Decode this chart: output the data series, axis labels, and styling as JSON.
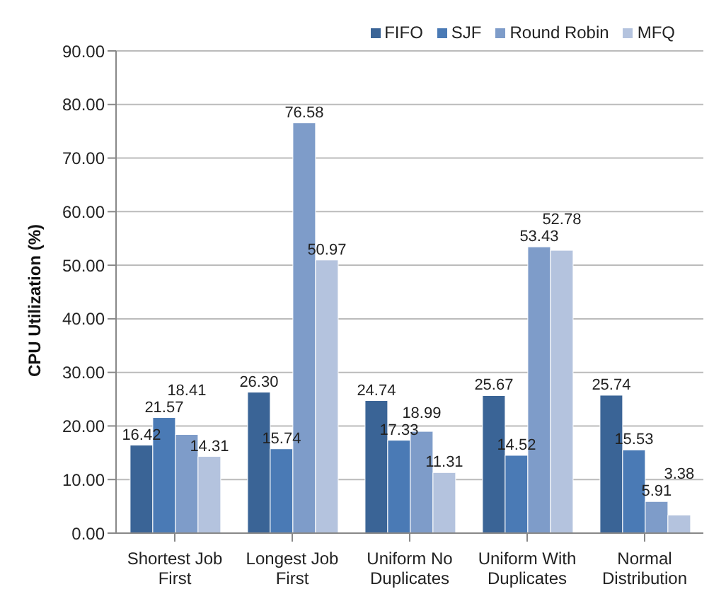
{
  "chart_data": {
    "type": "bar",
    "ylabel": "CPU Utilization (%)",
    "categories": [
      "Shortest Job First",
      "Longest Job First",
      "Uniform No Duplicates",
      "Uniform With Duplicates",
      "Normal Distribution"
    ],
    "series": [
      {
        "name": "FIFO",
        "color": "#3a6496",
        "values": [
          16.42,
          26.3,
          24.74,
          25.67,
          25.74
        ],
        "value_labels": [
          "16.42",
          "26.30",
          "24.74",
          "25.67",
          "25.74"
        ]
      },
      {
        "name": "SJF",
        "color": "#4a7ab5",
        "values": [
          21.57,
          15.74,
          17.33,
          14.52,
          15.53
        ],
        "value_labels": [
          "21.57",
          "15.74",
          "17.33",
          "14.52",
          "15.53"
        ]
      },
      {
        "name": "Round Robin",
        "color": "#7e9cc9",
        "values": [
          18.41,
          76.58,
          18.99,
          53.43,
          5.91
        ],
        "value_labels": [
          "18.41",
          "76.58",
          "18.99",
          "53.43",
          "5.91"
        ]
      },
      {
        "name": "MFQ",
        "color": "#b4c3de",
        "values": [
          14.31,
          50.97,
          11.31,
          52.78,
          3.38
        ],
        "value_labels": [
          "14.31",
          "50.97",
          "11.31",
          "52.78",
          "3.38"
        ]
      }
    ],
    "ylim": [
      0,
      90
    ],
    "yticks": [
      {
        "value": 0,
        "label": "0.00"
      },
      {
        "value": 10,
        "label": "10.00"
      },
      {
        "value": 20,
        "label": "20.00"
      },
      {
        "value": 30,
        "label": "30.00"
      },
      {
        "value": 40,
        "label": "40.00"
      },
      {
        "value": 50,
        "label": "50.00"
      },
      {
        "value": 60,
        "label": "60.00"
      },
      {
        "value": 70,
        "label": "70.00"
      },
      {
        "value": 80,
        "label": "80.00"
      },
      {
        "value": 90,
        "label": "90.00"
      }
    ],
    "grid": "y",
    "legend": "top right"
  }
}
